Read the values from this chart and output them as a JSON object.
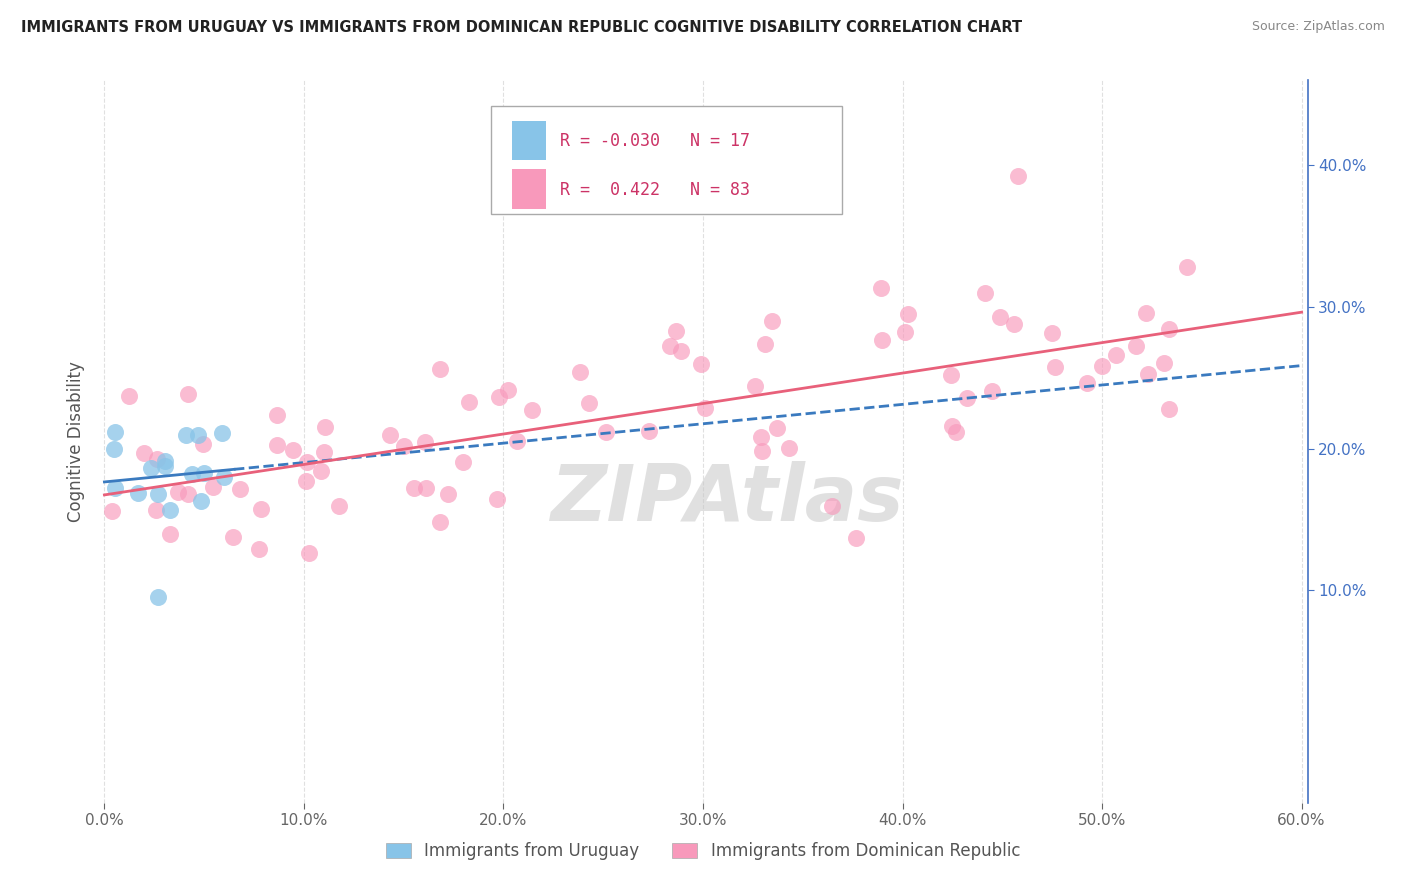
{
  "title": "IMMIGRANTS FROM URUGUAY VS IMMIGRANTS FROM DOMINICAN REPUBLIC COGNITIVE DISABILITY CORRELATION CHART",
  "source": "Source: ZipAtlas.com",
  "ylabel": "Cognitive Disability",
  "legend_entries": [
    {
      "R": -0.03,
      "N": 17,
      "color": "#88c4e8"
    },
    {
      "R": 0.422,
      "N": 83,
      "color": "#f899bb"
    }
  ],
  "legend_labels": [
    "Immigrants from Uruguay",
    "Immigrants from Dominican Republic"
  ],
  "xlim": [
    0.0,
    0.6
  ],
  "ylim": [
    -0.05,
    0.46
  ],
  "right_yticks": [
    0.1,
    0.2,
    0.3,
    0.4
  ],
  "xticks": [
    0.0,
    0.1,
    0.2,
    0.3,
    0.4,
    0.5,
    0.6
  ],
  "uruguay_color": "#88c4e8",
  "dr_color": "#f899bb",
  "trend_uruguay_color": "#3a7abf",
  "trend_dr_color": "#e8607a",
  "grid_color": "#dddddd",
  "right_tick_color": "#4472c4",
  "watermark": "ZIPAtlas",
  "background_color": "#ffffff"
}
